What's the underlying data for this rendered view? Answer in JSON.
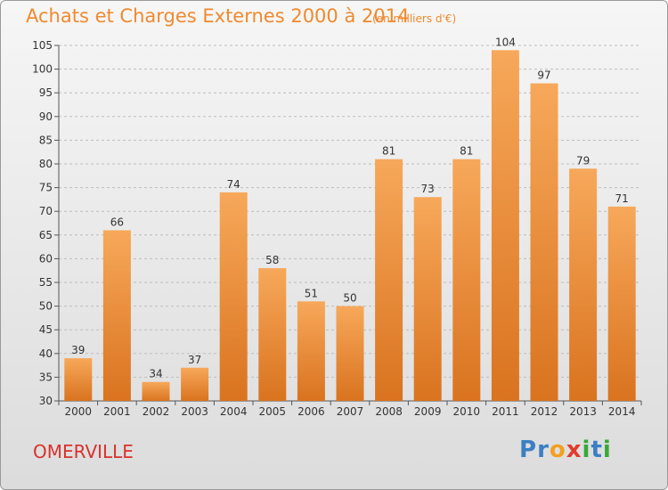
{
  "title": "Achats et Charges Externes 2000 à 2014",
  "unit": "(en milliers d'€)",
  "town": "OMERVILLE",
  "logo": {
    "letters": [
      "P",
      "r",
      "o",
      "x",
      "i",
      "t",
      "i"
    ],
    "colors": [
      "#3b7fc4",
      "#3b7fc4",
      "#f2a020",
      "#e23b2e",
      "#37a93b",
      "#3b7fc4",
      "#37a93b"
    ]
  },
  "colors": {
    "bar_top": "#f7a85a",
    "bar_bottom": "#d9731f",
    "grid": "#bdbdbd",
    "title": "#ef8a2e",
    "town": "#d9312d"
  },
  "chart_data": {
    "type": "bar",
    "categories": [
      "2000",
      "2001",
      "2002",
      "2003",
      "2004",
      "2005",
      "2006",
      "2007",
      "2008",
      "2009",
      "2010",
      "2011",
      "2012",
      "2013",
      "2014"
    ],
    "values": [
      39,
      66,
      34,
      37,
      74,
      58,
      51,
      50,
      81,
      73,
      81,
      104,
      97,
      79,
      71
    ],
    "ylim": [
      30,
      105
    ],
    "yticks": [
      30,
      35,
      40,
      45,
      50,
      55,
      60,
      65,
      70,
      75,
      80,
      85,
      90,
      95,
      100,
      105
    ],
    "grid": true
  }
}
